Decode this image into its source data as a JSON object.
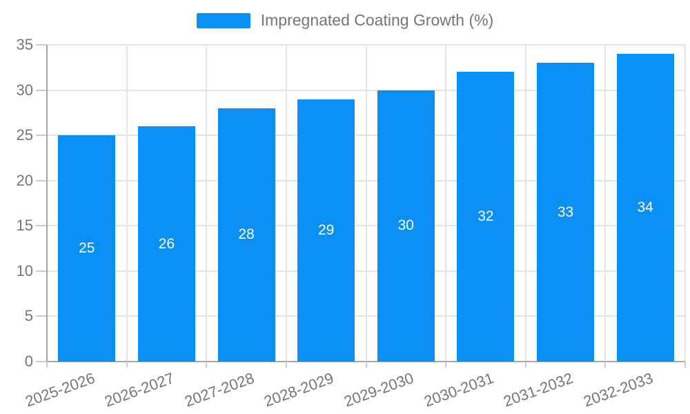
{
  "chart_data": {
    "type": "bar",
    "title": "Impregnated Coating Growth (%)",
    "legend": "Impregnated Coating Growth (%)",
    "legend_position": "top-center",
    "categories": [
      "2025-2026",
      "2026-2027",
      "2027-2028",
      "2028-2029",
      "2029-2030",
      "2030-2031",
      "2031-2032",
      "2032-2033"
    ],
    "series": [
      {
        "name": "Impregnated Coating Growth (%)",
        "values": [
          25,
          26,
          28,
          29,
          30,
          32,
          33,
          34
        ]
      }
    ],
    "value_labels": [
      "25",
      "26",
      "28",
      "29",
      "30",
      "32",
      "33",
      "34"
    ],
    "xlabel": "",
    "ylabel": "",
    "ylim": [
      0,
      35
    ],
    "yticks": [
      0,
      5,
      10,
      15,
      20,
      25,
      30,
      35
    ],
    "grid": true,
    "value_labels_inside_bars": true,
    "x_labels_rotation_deg": -20,
    "colors": {
      "bar": "#0a8ff2",
      "value_label": "#ffffff",
      "axis_text": "#757575",
      "grid_line": "#e4e4e4",
      "tick_line": "#cccccc",
      "axis_line": "#a5a5a5",
      "background": "#ffffff"
    }
  }
}
